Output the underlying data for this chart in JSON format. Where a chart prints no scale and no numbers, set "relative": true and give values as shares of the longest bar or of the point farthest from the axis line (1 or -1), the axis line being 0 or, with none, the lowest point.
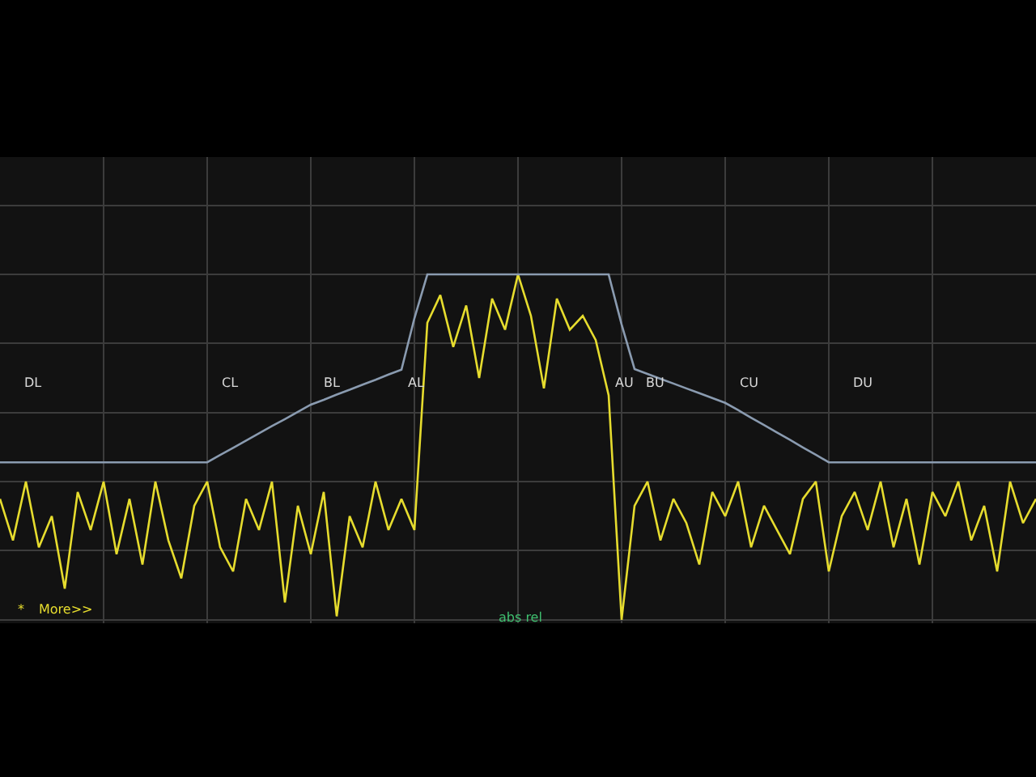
{
  "chart_data": {
    "type": "line",
    "relative": true,
    "grid": true,
    "marker": "none",
    "categories": [
      null,
      null,
      null,
      null,
      null,
      null,
      null,
      null,
      null,
      null,
      null,
      null,
      null,
      null,
      null,
      null,
      null,
      null,
      null,
      null,
      null,
      null,
      null,
      null,
      null,
      null,
      null,
      null,
      null,
      null,
      null,
      null,
      null,
      null,
      null,
      null,
      null,
      null,
      null,
      null,
      null,
      null,
      null,
      null,
      null,
      null,
      null,
      null,
      null,
      null,
      null,
      null,
      null,
      null,
      null,
      null,
      null,
      null,
      null,
      null,
      null,
      null,
      null,
      null,
      null,
      null,
      null,
      null,
      null,
      null,
      null,
      null,
      null,
      null,
      null,
      null,
      null,
      null,
      null,
      null,
      null
    ],
    "series": [
      {
        "color": "#e6dc2e",
        "values": [
          0.35,
          0.23,
          0.4,
          0.21,
          0.3,
          0.09,
          0.37,
          0.26,
          0.4,
          0.19,
          0.35,
          0.16,
          0.4,
          0.23,
          0.12,
          0.33,
          0.4,
          0.21,
          0.14,
          0.35,
          0.26,
          0.4,
          0.05,
          0.33,
          0.19,
          0.37,
          0.01,
          0.3,
          0.21,
          0.4,
          0.26,
          0.35,
          0.26,
          0.86,
          0.94,
          0.79,
          0.91,
          0.7,
          0.93,
          0.84,
          1.0,
          0.88,
          0.67,
          0.93,
          0.84,
          0.88,
          0.81,
          0.65,
          0.0,
          0.33,
          0.4,
          0.23,
          0.35,
          0.28,
          0.16,
          0.37,
          0.3,
          0.4,
          0.21,
          0.33,
          0.26,
          0.19,
          0.35,
          0.4,
          0.14,
          0.3,
          0.37,
          0.26,
          0.4,
          0.21,
          0.35,
          0.16,
          0.37,
          0.3,
          0.4,
          0.23,
          0.33,
          0.14,
          0.4,
          0.28,
          0.35
        ]
      },
      {
        "color": "#8a9bb0",
        "values": [
          0.456,
          0.456,
          0.456,
          0.456,
          0.456,
          0.456,
          0.456,
          0.456,
          0.456,
          0.456,
          0.456,
          0.456,
          0.456,
          0.456,
          0.456,
          0.456,
          0.456,
          0.477,
          0.498,
          0.519,
          0.54,
          0.561,
          0.581,
          0.602,
          0.623,
          0.637,
          0.652,
          0.666,
          0.681,
          0.695,
          0.71,
          0.724,
          0.873,
          1.0,
          1.0,
          1.0,
          1.0,
          1.0,
          1.0,
          1.0,
          1.0,
          1.0,
          1.0,
          1.0,
          1.0,
          1.0,
          1.0,
          1.0,
          0.855,
          0.726,
          0.712,
          0.698,
          0.684,
          0.67,
          0.656,
          0.642,
          0.628,
          0.607,
          0.585,
          0.564,
          0.542,
          0.521,
          0.499,
          0.478,
          0.456,
          0.456,
          0.456,
          0.456,
          0.456,
          0.456,
          0.456,
          0.456,
          0.456,
          0.456,
          0.456,
          0.456,
          0.456,
          0.456,
          0.456,
          0.456,
          0.456
        ]
      }
    ],
    "annotations": [
      "DL",
      "CL",
      "BL",
      "AL",
      "AU",
      "BU",
      "CU",
      "DU",
      "*",
      "More>>",
      "abs rel"
    ]
  }
}
